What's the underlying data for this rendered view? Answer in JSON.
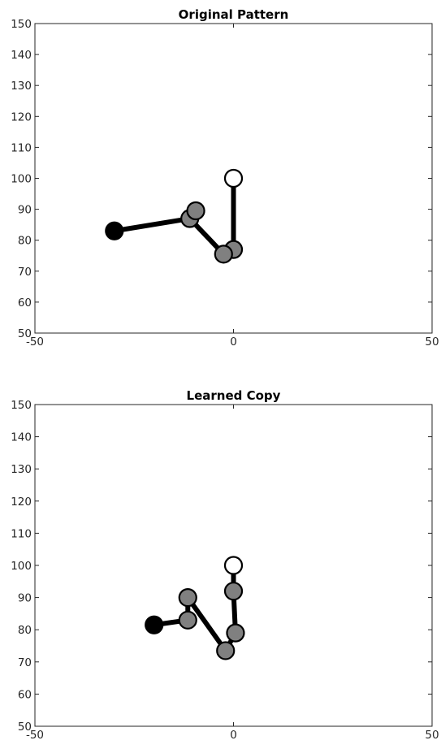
{
  "chart_data": [
    {
      "type": "line",
      "title": "Original Pattern",
      "xlabel": "",
      "ylabel": "",
      "xlim": [
        -50,
        50
      ],
      "ylim": [
        50,
        150
      ],
      "xticks": [
        -50,
        0,
        50
      ],
      "yticks": [
        50,
        60,
        70,
        80,
        90,
        100,
        110,
        120,
        130,
        140,
        150
      ],
      "grid": false,
      "nodes": [
        {
          "x": 0,
          "y": 100,
          "kind": "open"
        },
        {
          "x": 0,
          "y": 77,
          "kind": "gray"
        },
        {
          "x": -2.5,
          "y": 75.5,
          "kind": "gray"
        },
        {
          "x": -11,
          "y": 87,
          "kind": "gray"
        },
        {
          "x": -9.5,
          "y": 89.5,
          "kind": "gray"
        },
        {
          "x": -30,
          "y": 83,
          "kind": "filled"
        }
      ],
      "segments": [
        [
          0,
          1
        ],
        [
          1,
          2
        ],
        [
          2,
          3
        ],
        [
          3,
          5
        ]
      ]
    },
    {
      "type": "line",
      "title": "Learned Copy",
      "xlabel": "",
      "ylabel": "",
      "xlim": [
        -50,
        50
      ],
      "ylim": [
        50,
        150
      ],
      "xticks": [
        -50,
        0,
        50
      ],
      "yticks": [
        50,
        60,
        70,
        80,
        90,
        100,
        110,
        120,
        130,
        140,
        150
      ],
      "grid": false,
      "nodes": [
        {
          "x": 0,
          "y": 100,
          "kind": "open"
        },
        {
          "x": 0,
          "y": 92,
          "kind": "gray"
        },
        {
          "x": 0.5,
          "y": 79,
          "kind": "gray"
        },
        {
          "x": -2,
          "y": 73.5,
          "kind": "gray"
        },
        {
          "x": -11.5,
          "y": 90,
          "kind": "gray"
        },
        {
          "x": -11.5,
          "y": 83,
          "kind": "gray"
        },
        {
          "x": -20,
          "y": 81.5,
          "kind": "filled"
        }
      ],
      "segments": [
        [
          0,
          1
        ],
        [
          1,
          2
        ],
        [
          2,
          3
        ],
        [
          3,
          4
        ],
        [
          4,
          5
        ],
        [
          5,
          6
        ]
      ]
    }
  ],
  "colors": {
    "gray_marker": "#808080",
    "stroke": "#000000",
    "axis": "#262626"
  }
}
